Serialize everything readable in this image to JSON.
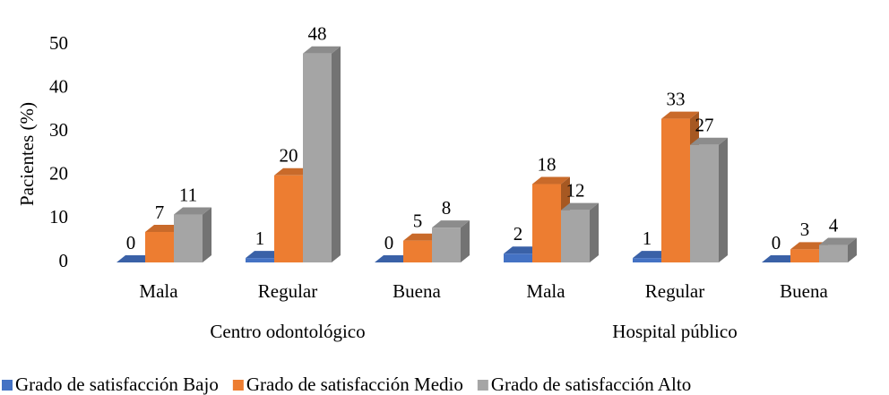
{
  "chart_data": {
    "type": "bar3d",
    "ylabel": "Pacientes (%)",
    "categories": [
      "Mala",
      "Regular",
      "Buena",
      "Mala",
      "Regular",
      "Buena"
    ],
    "groups": [
      "Centro odontológico",
      "Hospital público"
    ],
    "series": [
      {
        "name": "Grado de satisfacción Bajo",
        "color": "#4472c4",
        "values": [
          0,
          1,
          0,
          2,
          1,
          0
        ]
      },
      {
        "name": "Grado de satisfacción Medio",
        "color": "#ed7d31",
        "values": [
          7,
          20,
          5,
          18,
          33,
          3
        ]
      },
      {
        "name": "Grado de satisfacción Alto",
        "color": "#a5a5a5",
        "values": [
          11,
          48,
          8,
          12,
          27,
          4
        ]
      }
    ],
    "ylim": [
      0,
      50
    ],
    "yticks": [
      0,
      10,
      20,
      30,
      40,
      50
    ],
    "grid": false,
    "legend": "bottom"
  }
}
